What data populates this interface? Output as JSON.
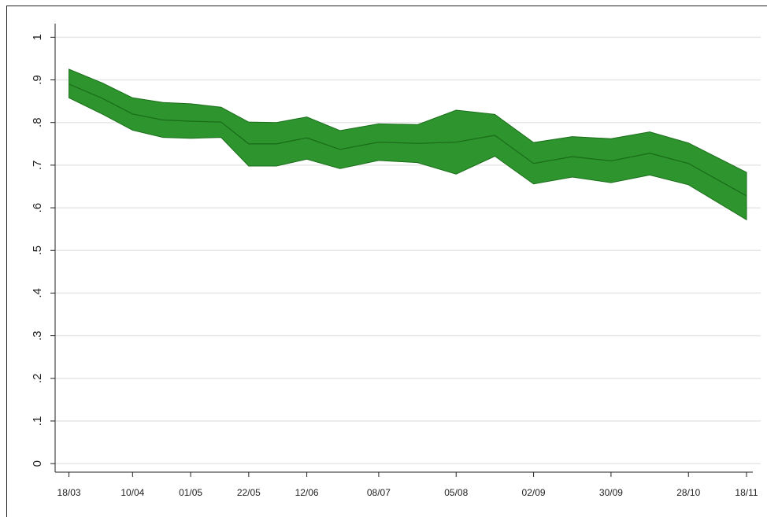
{
  "chart_data": {
    "type": "band-line",
    "x": [
      77,
      89,
      100,
      111,
      121,
      132,
      142,
      152,
      163,
      175,
      189,
      203,
      217,
      231,
      245,
      259,
      273,
      287,
      301,
      322
    ],
    "values": [
      0.89,
      0.857,
      0.82,
      0.806,
      0.803,
      0.801,
      0.75,
      0.75,
      0.764,
      0.737,
      0.754,
      0.751,
      0.754,
      0.77,
      0.704,
      0.72,
      0.71,
      0.728,
      0.704,
      0.628
    ],
    "upper": [
      0.925,
      0.893,
      0.858,
      0.847,
      0.844,
      0.836,
      0.801,
      0.8,
      0.813,
      0.781,
      0.797,
      0.795,
      0.829,
      0.819,
      0.753,
      0.767,
      0.762,
      0.778,
      0.752,
      0.683
    ],
    "lower": [
      0.858,
      0.82,
      0.782,
      0.765,
      0.763,
      0.765,
      0.698,
      0.698,
      0.714,
      0.692,
      0.711,
      0.706,
      0.679,
      0.721,
      0.656,
      0.672,
      0.659,
      0.677,
      0.654,
      0.572
    ],
    "color": "#2e952e",
    "line_color": "#1a6e1a",
    "xlim": [
      72,
      322
    ],
    "xticks": [
      {
        "value": 77,
        "label": "18/03"
      },
      {
        "value": 100,
        "label": "10/04"
      },
      {
        "value": 121,
        "label": "01/05"
      },
      {
        "value": 142,
        "label": "22/05"
      },
      {
        "value": 163,
        "label": "12/06"
      },
      {
        "value": 189,
        "label": "08/07"
      },
      {
        "value": 217,
        "label": "05/08"
      },
      {
        "value": 245,
        "label": "02/09"
      },
      {
        "value": 273,
        "label": "30/09"
      },
      {
        "value": 301,
        "label": "28/10"
      },
      {
        "value": 322,
        "label": "18/11"
      }
    ],
    "ylim": [
      -0.02,
      1.032
    ],
    "yticks": [
      0,
      {
        "value": 0.1,
        "label": ".1"
      },
      {
        "value": 0.2,
        "label": ".2"
      },
      {
        "value": 0.3,
        "label": ".3"
      },
      {
        "value": 0.4,
        "label": ".4"
      },
      {
        "value": 0.5,
        "label": ".5"
      },
      {
        "value": 0.6,
        "label": ".6"
      },
      {
        "value": 0.7,
        "label": ".7"
      },
      {
        "value": 0.8,
        "label": ".8"
      },
      {
        "value": 0.9,
        "label": ".9"
      },
      1
    ],
    "grid": true
  }
}
